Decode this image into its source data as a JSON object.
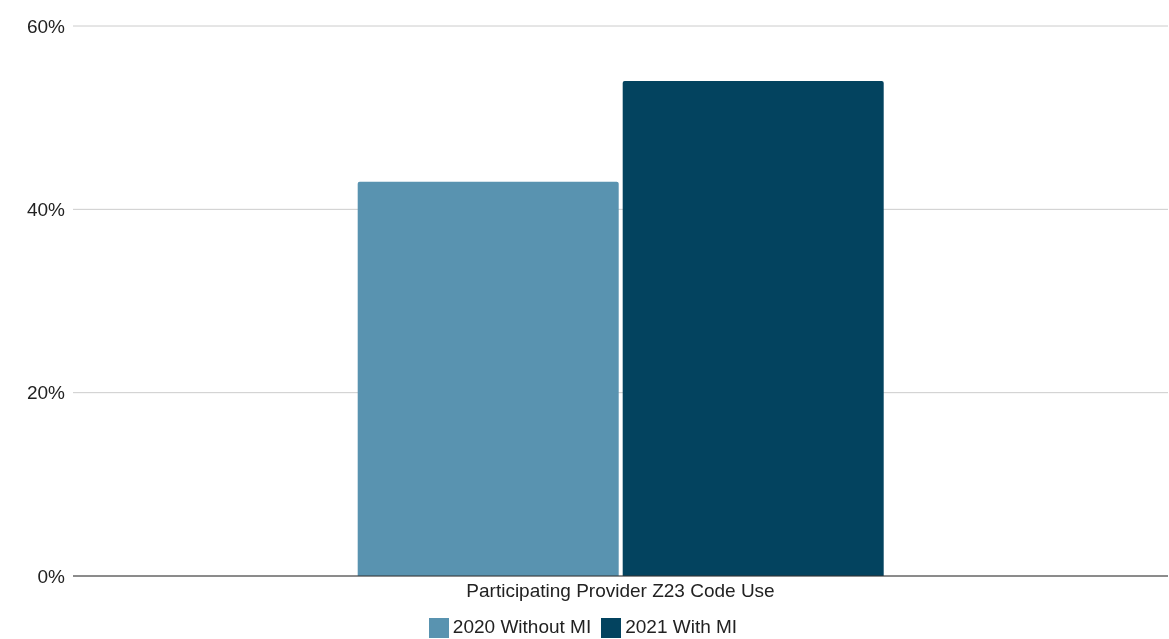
{
  "chart_data": {
    "type": "bar",
    "categories": [
      "Participating Provider Z23 Code Use"
    ],
    "series": [
      {
        "name": "2020 Without MI",
        "color": "#5993b0",
        "values": [
          43
        ]
      },
      {
        "name": "2021 With MI",
        "color": "#03435f",
        "values": [
          54
        ]
      }
    ],
    "ylim": [
      0,
      60
    ],
    "yticks": [
      {
        "value": 0,
        "label": "0%"
      },
      {
        "value": 20,
        "label": "20%"
      },
      {
        "value": 40,
        "label": "40%"
      },
      {
        "value": 60,
        "label": "60%"
      }
    ],
    "grid": "y",
    "legend": "bottom"
  }
}
